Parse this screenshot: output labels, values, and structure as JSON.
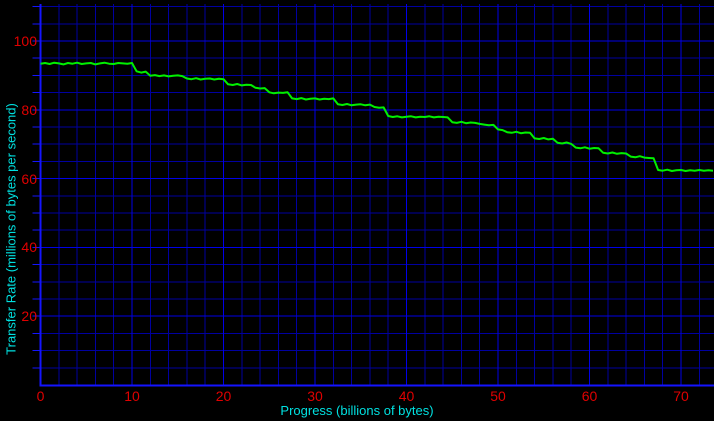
{
  "colors": {
    "background": "#000000",
    "grid_minor": "#0000a0",
    "grid_major": "#0000e8",
    "axis": "#1414ff",
    "line": "#00f000",
    "tick_label": "#e00000",
    "axis_title": "#00e0e0"
  },
  "chart_data": {
    "type": "line",
    "title": "",
    "xlabel": "Progress (billions of bytes)",
    "ylabel": "Transfer Rate (millions of bytes per second)",
    "xlim": [
      0,
      73.6
    ],
    "ylim": [
      0,
      110
    ],
    "x_ticks": [
      0,
      10,
      20,
      30,
      40,
      50,
      60,
      70
    ],
    "y_ticks": [
      20,
      40,
      60,
      80,
      100
    ],
    "x_minor_step": 2,
    "y_minor_step": 5,
    "grid": true,
    "legend": false,
    "series": [
      {
        "name": "transfer-rate",
        "x_start": 0,
        "x_step": 0.5,
        "values": [
          93.4,
          93.6,
          93.3,
          93.7,
          93.5,
          93.2,
          93.6,
          93.4,
          93.7,
          93.3,
          93.5,
          93.6,
          93.2,
          93.5,
          93.7,
          93.4,
          93.3,
          93.6,
          93.5,
          93.4,
          93.6,
          91.2,
          90.8,
          91.1,
          89.9,
          90.1,
          89.8,
          90.0,
          89.7,
          89.9,
          90.0,
          89.8,
          89.1,
          88.9,
          89.2,
          88.8,
          89.0,
          89.1,
          88.8,
          89.0,
          88.9,
          87.4,
          87.2,
          87.5,
          87.1,
          87.3,
          87.2,
          86.4,
          86.2,
          86.3,
          85.1,
          84.8,
          85.0,
          84.9,
          85.1,
          83.3,
          83.1,
          83.4,
          83.0,
          83.2,
          83.3,
          83.0,
          83.2,
          83.1,
          83.3,
          81.6,
          81.4,
          81.7,
          81.3,
          81.5,
          81.6,
          81.3,
          81.5,
          80.8,
          80.6,
          80.7,
          78.2,
          77.9,
          78.1,
          77.8,
          78.0,
          78.1,
          77.8,
          78.0,
          77.9,
          78.1,
          77.8,
          78.0,
          77.9,
          77.8,
          76.4,
          76.2,
          76.5,
          76.1,
          76.3,
          76.2,
          75.9,
          75.7,
          75.5,
          75.6,
          74.3,
          74.1,
          73.5,
          73.3,
          73.6,
          73.2,
          73.4,
          73.3,
          71.7,
          71.5,
          71.8,
          71.4,
          71.6,
          70.4,
          70.2,
          70.5,
          70.1,
          69.0,
          68.8,
          69.1,
          68.7,
          68.9,
          68.8,
          67.5,
          67.3,
          67.6,
          67.2,
          67.4,
          67.3,
          66.4,
          66.2,
          66.5,
          66.1,
          66.0,
          65.9,
          62.5,
          62.3,
          62.6,
          62.2,
          62.4,
          62.5,
          62.2,
          62.4,
          62.3,
          62.5,
          62.3,
          62.4,
          62.3
        ]
      }
    ]
  }
}
